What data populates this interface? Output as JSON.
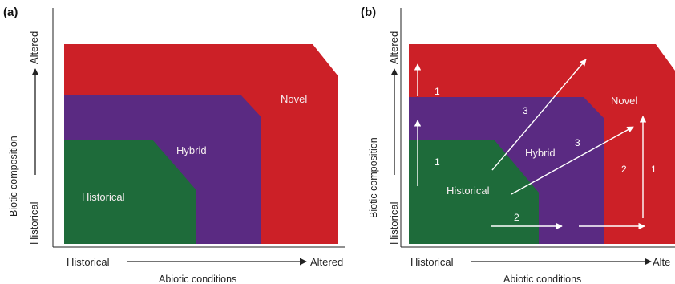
{
  "panel_a": {
    "label": "(a)",
    "y_axis": {
      "title": "Biotic composition",
      "low": "Historical",
      "high": "Altered"
    },
    "x_axis": {
      "title": "Abiotic conditions",
      "low": "Historical",
      "high": "Altered"
    },
    "regions": {
      "novel": "Novel",
      "hybrid": "Hybrid",
      "historical": "Historical"
    }
  },
  "panel_b": {
    "label": "(b)",
    "y_axis": {
      "title": "Biotic composition",
      "low": "Historical",
      "high": "Altered"
    },
    "x_axis": {
      "title": "Abiotic conditions",
      "low": "Historical",
      "high": "Alte"
    },
    "regions": {
      "novel": "Novel",
      "hybrid": "Hybrid",
      "historical": "Historical"
    },
    "arrow_labels": {
      "a1_upper": "1",
      "a1_lower": "1",
      "a3_upper": "3",
      "a3_lower": "3",
      "a2_bottom": "2",
      "a2_right": "2",
      "a1_right": "1"
    }
  },
  "colors": {
    "novel": "#cc2027",
    "hybrid": "#5a2a82",
    "historical": "#1e6b3a",
    "arrow": "#ffffff",
    "axis": "#222222"
  }
}
